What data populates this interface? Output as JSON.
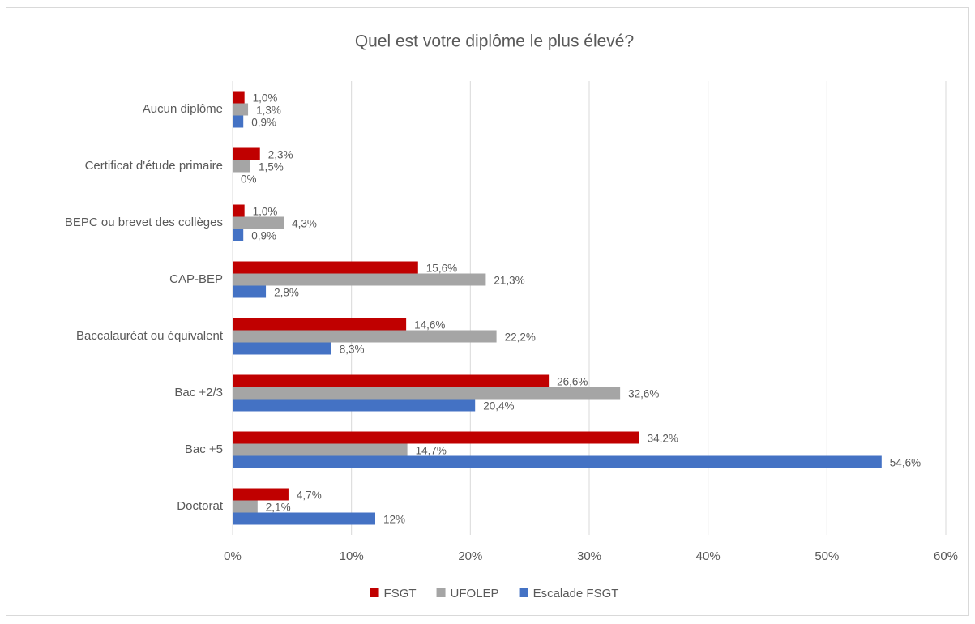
{
  "chart_data": {
    "type": "barh",
    "title": "Quel est votre diplôme le plus élevé?",
    "categories": [
      "Aucun diplôme",
      "Certificat d'étude primaire",
      "BEPC ou brevet des collèges",
      "CAP-BEP",
      "Baccalauréat ou équivalent",
      "Bac +2/3",
      "Bac +5",
      "Doctorat"
    ],
    "series": [
      {
        "name": "FSGT",
        "color": "#c00000",
        "values": [
          1.0,
          2.3,
          1.0,
          15.6,
          14.6,
          26.6,
          34.2,
          4.7
        ],
        "value_labels": [
          "1,0%",
          "2,3%",
          "1,0%",
          "15,6%",
          "14,6%",
          "26,6%",
          "34,2%",
          "4,7%"
        ]
      },
      {
        "name": "UFOLEP",
        "color": "#a5a5a5",
        "values": [
          1.3,
          1.5,
          4.3,
          21.3,
          22.2,
          32.6,
          14.7,
          2.1
        ],
        "value_labels": [
          "1,3%",
          "1,5%",
          "4,3%",
          "21,3%",
          "22,2%",
          "32,6%",
          "14,7%",
          "2,1%"
        ]
      },
      {
        "name": "Escalade FSGT",
        "color": "#4472c4",
        "values": [
          0.9,
          0,
          0.9,
          2.8,
          8.3,
          20.4,
          54.6,
          12
        ],
        "value_labels": [
          "0,9%",
          "0%",
          "0,9%",
          "2,8%",
          "8,3%",
          "20,4%",
          "54,6%",
          "12%"
        ]
      }
    ],
    "xlim": [
      0,
      60
    ],
    "xticks": [
      {
        "value": 0,
        "label": "0%"
      },
      {
        "value": 10,
        "label": "10%"
      },
      {
        "value": 20,
        "label": "20%"
      },
      {
        "value": 30,
        "label": "30%"
      },
      {
        "value": 40,
        "label": "40%"
      },
      {
        "value": 50,
        "label": "50%"
      },
      {
        "value": 60,
        "label": "60%"
      }
    ],
    "grid": true,
    "legend": "bottom"
  }
}
